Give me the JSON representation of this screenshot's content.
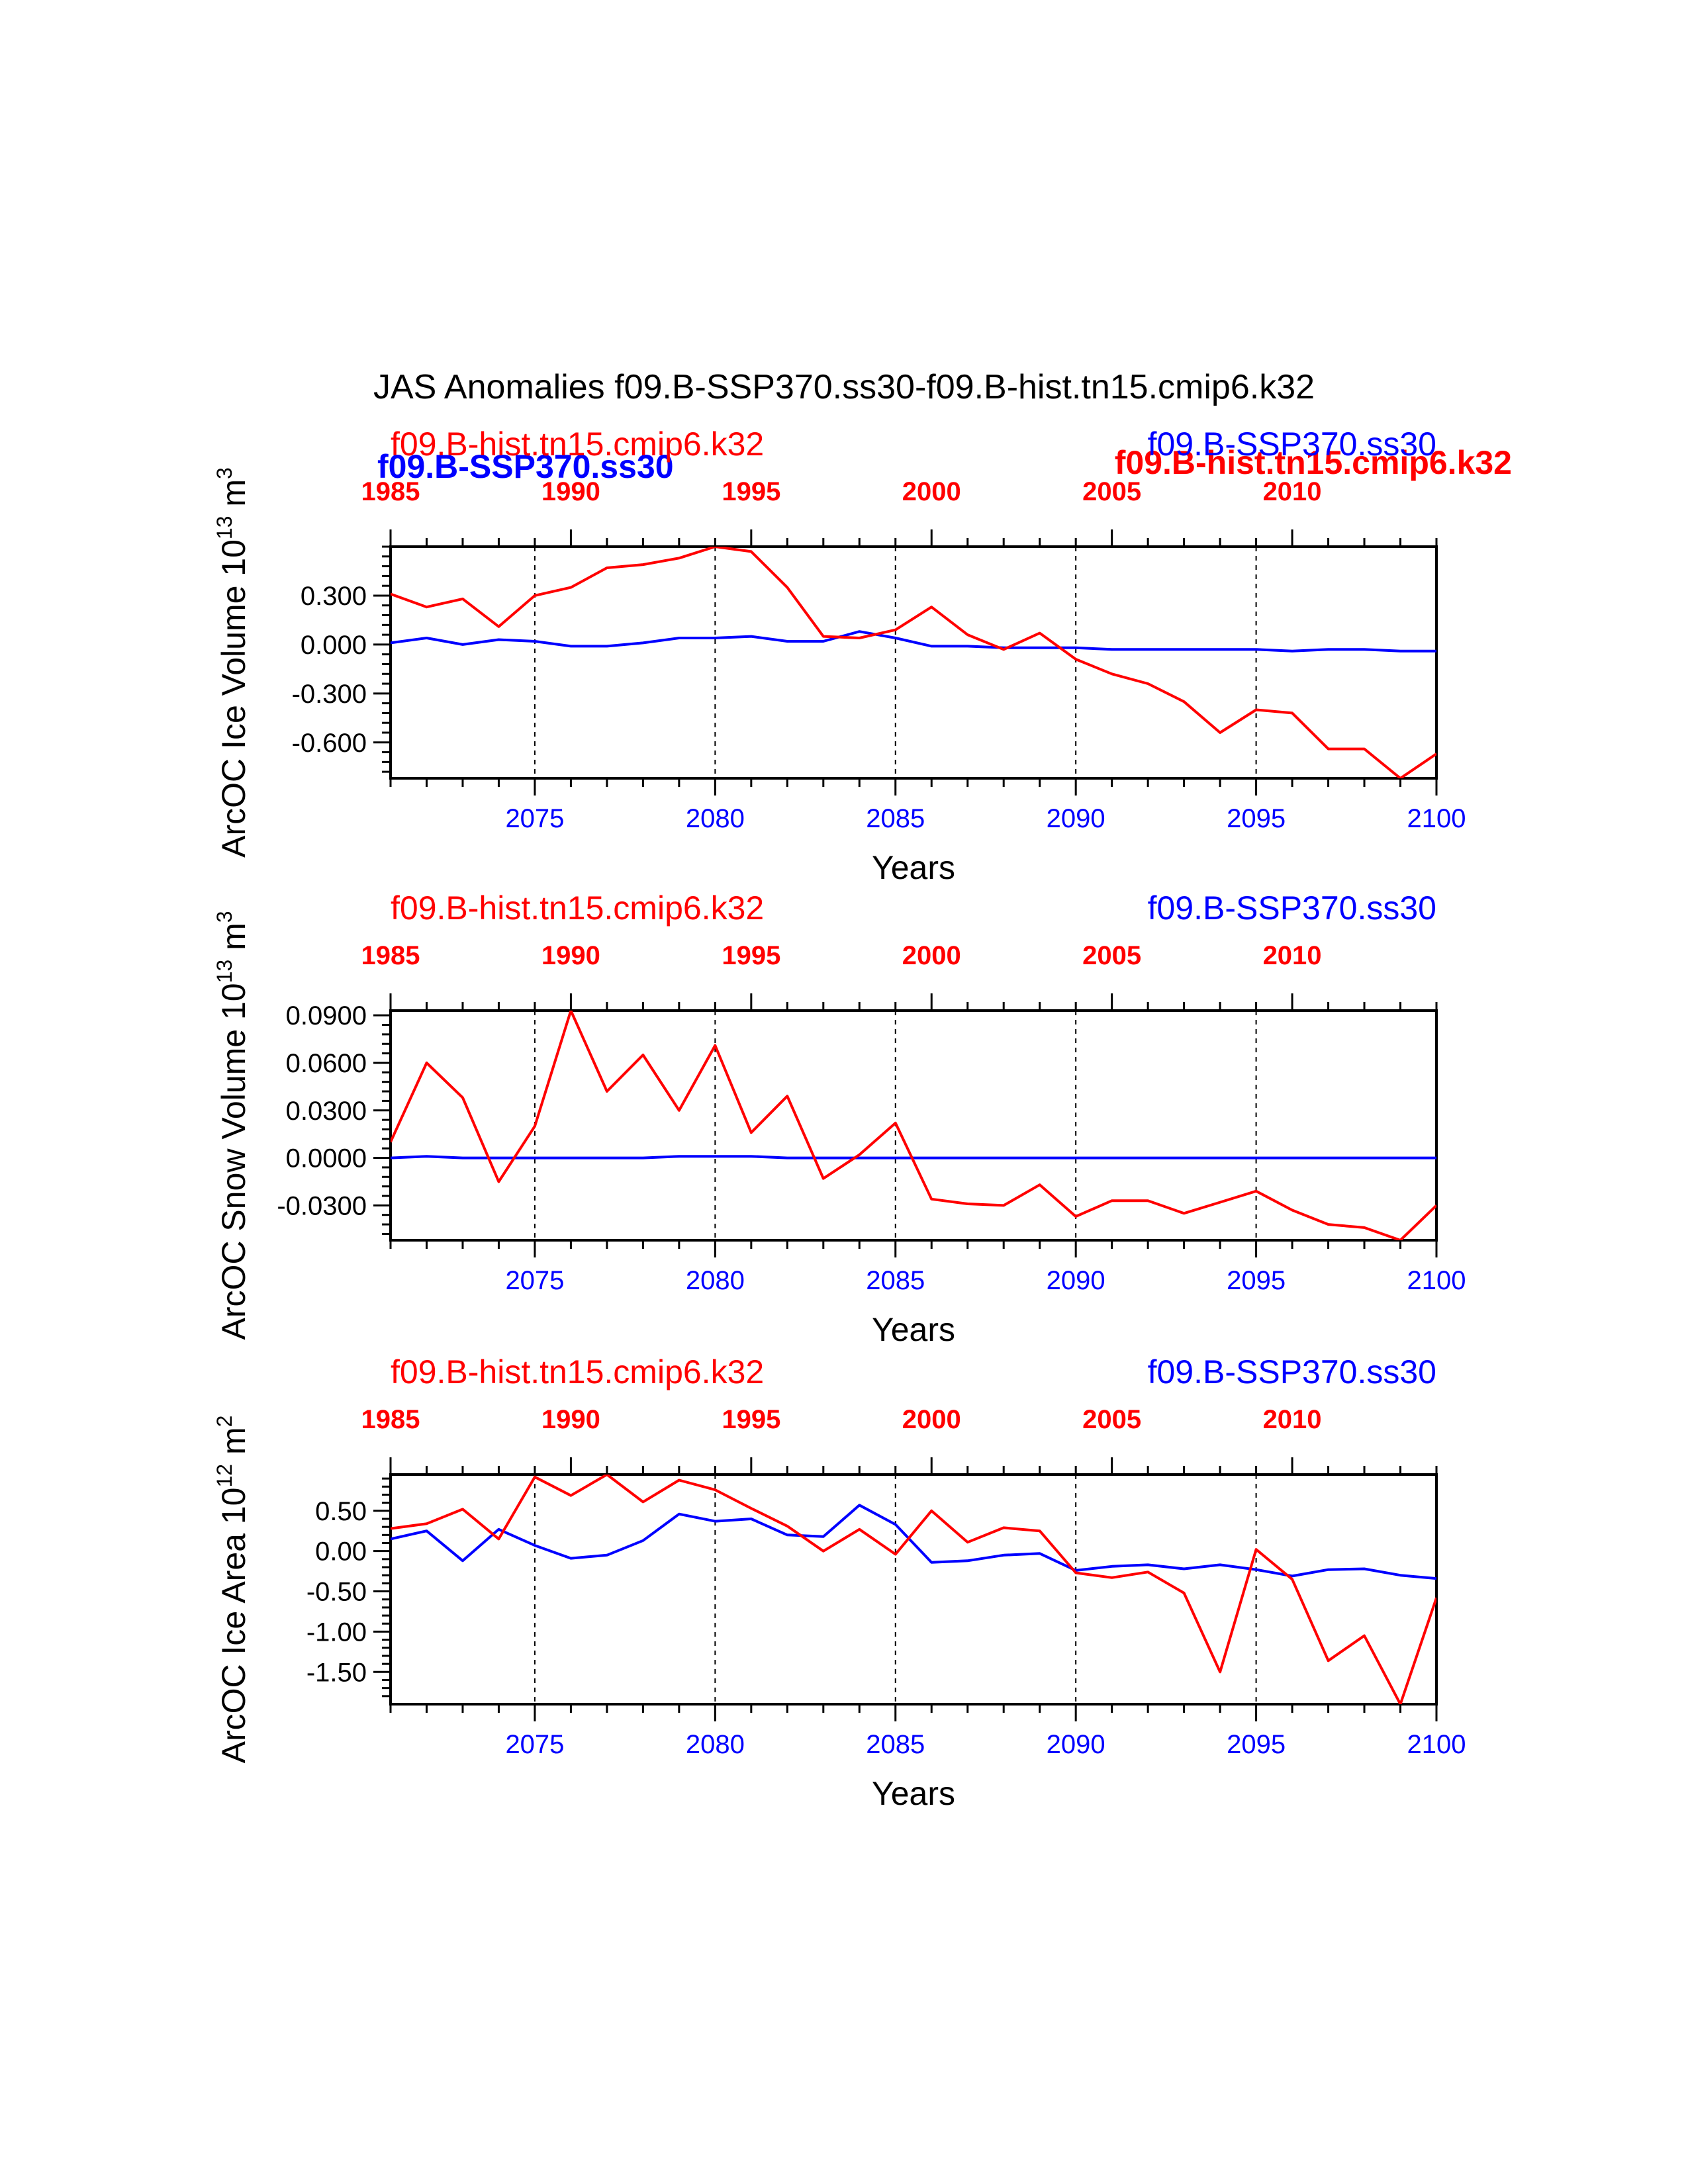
{
  "title": "JAS Anomalies f09.B-SSP370.ss30-f09.B-hist.tn15.cmip6.k32",
  "colors": {
    "hist": "#ff0000",
    "ssp": "#0000ff",
    "axis": "#000000",
    "grid": "#000000"
  },
  "overlay_labels": {
    "ssp_bold": "f09.B-SSP370.ss30",
    "hist_bold": "f09.B-hist.tn15.cmip6.k32"
  },
  "chart_data": [
    {
      "type": "line",
      "ylabel_main": "ArcOC Ice Volume 10",
      "ylabel_exp": "13",
      "ylabel_unit": " m",
      "ylabel_unit_exp": "3",
      "xlabel": "Years",
      "left_label": "f09.B-hist.tn15.cmip6.k32",
      "right_label": "f09.B-SSP370.ss30",
      "x_bottom": [
        2071,
        2072,
        2073,
        2074,
        2075,
        2076,
        2077,
        2078,
        2079,
        2080,
        2081,
        2082,
        2083,
        2084,
        2085,
        2086,
        2087,
        2088,
        2089,
        2090,
        2091,
        2092,
        2093,
        2094,
        2095,
        2096,
        2097,
        2098,
        2099,
        2100
      ],
      "xlim": [
        2071,
        2100
      ],
      "xticks_bottom": [
        2075,
        2080,
        2085,
        2090,
        2095,
        2100
      ],
      "xticks_top": [
        1985,
        1990,
        1995,
        2000,
        2005,
        2010
      ],
      "xlim_top": [
        1985,
        2014
      ],
      "grid_x": [
        2075,
        2080,
        2085,
        2090,
        2095
      ],
      "ylim": [
        -0.82,
        0.6
      ],
      "yticks": [
        0.3,
        0.0,
        -0.3,
        -0.6
      ],
      "ytick_labels": [
        "0.300",
        "0.000",
        "-0.300",
        "-0.600"
      ],
      "series": [
        {
          "name": "f09.B-hist.tn15.cmip6.k32",
          "color": "#ff0000",
          "values": [
            0.31,
            0.23,
            0.28,
            0.11,
            0.3,
            0.35,
            0.47,
            0.49,
            0.53,
            0.6,
            0.57,
            0.35,
            0.05,
            0.04,
            0.09,
            0.23,
            0.06,
            -0.03,
            0.07,
            -0.09,
            -0.18,
            -0.24,
            -0.35,
            -0.54,
            -0.4,
            -0.42,
            -0.64,
            -0.64,
            -0.82,
            -0.67
          ]
        },
        {
          "name": "f09.B-SSP370.ss30",
          "color": "#0000ff",
          "values": [
            0.01,
            0.04,
            0.0,
            0.03,
            0.02,
            -0.01,
            -0.01,
            0.01,
            0.04,
            0.04,
            0.05,
            0.02,
            0.02,
            0.08,
            0.04,
            -0.01,
            -0.01,
            -0.02,
            -0.02,
            -0.02,
            -0.03,
            -0.03,
            -0.03,
            -0.03,
            -0.03,
            -0.04,
            -0.03,
            -0.03,
            -0.04,
            -0.04
          ]
        }
      ]
    },
    {
      "type": "line",
      "ylabel_main": "ArcOC Snow Volume 10",
      "ylabel_exp": "13",
      "ylabel_unit": " m",
      "ylabel_unit_exp": "3",
      "xlabel": "Years",
      "left_label": "f09.B-hist.tn15.cmip6.k32",
      "right_label": "f09.B-SSP370.ss30",
      "x_bottom": [
        2071,
        2072,
        2073,
        2074,
        2075,
        2076,
        2077,
        2078,
        2079,
        2080,
        2081,
        2082,
        2083,
        2084,
        2085,
        2086,
        2087,
        2088,
        2089,
        2090,
        2091,
        2092,
        2093,
        2094,
        2095,
        2096,
        2097,
        2098,
        2099,
        2100
      ],
      "xlim": [
        2071,
        2100
      ],
      "xticks_bottom": [
        2075,
        2080,
        2085,
        2090,
        2095,
        2100
      ],
      "xticks_top": [
        1985,
        1990,
        1995,
        2000,
        2005,
        2010
      ],
      "xlim_top": [
        1985,
        2014
      ],
      "grid_x": [
        2075,
        2080,
        2085,
        2090,
        2095
      ],
      "ylim": [
        -0.052,
        0.093
      ],
      "yticks": [
        0.09,
        0.06,
        0.03,
        0.0,
        -0.03
      ],
      "ytick_labels": [
        "0.0900",
        "0.0600",
        "0.0300",
        "0.0000",
        "-0.0300"
      ],
      "series": [
        {
          "name": "f09.B-hist.tn15.cmip6.k32",
          "color": "#ff0000",
          "values": [
            0.01,
            0.06,
            0.038,
            -0.015,
            0.02,
            0.093,
            0.042,
            0.065,
            0.03,
            0.071,
            0.016,
            0.039,
            -0.013,
            0.002,
            0.022,
            -0.026,
            -0.029,
            -0.03,
            -0.017,
            -0.037,
            -0.027,
            -0.027,
            -0.035,
            -0.028,
            -0.021,
            -0.033,
            -0.042,
            -0.044,
            -0.052,
            -0.03
          ]
        },
        {
          "name": "f09.B-SSP370.ss30",
          "color": "#0000ff",
          "values": [
            0.0,
            0.001,
            0.0,
            0.0,
            0.0,
            0.0,
            0.0,
            0.0,
            0.001,
            0.001,
            0.001,
            0.0,
            0.0,
            0.0,
            0.0,
            0.0,
            0.0,
            0.0,
            0.0,
            0.0,
            0.0,
            0.0,
            0.0,
            0.0,
            0.0,
            0.0,
            0.0,
            0.0,
            0.0,
            0.0
          ]
        }
      ]
    },
    {
      "type": "line",
      "ylabel_main": "ArcOC Ice Area 10",
      "ylabel_exp": "12",
      "ylabel_unit": " m",
      "ylabel_unit_exp": "2",
      "xlabel": "Years",
      "left_label": "f09.B-hist.tn15.cmip6.k32",
      "right_label": "f09.B-SSP370.ss30",
      "x_bottom": [
        2071,
        2072,
        2073,
        2074,
        2075,
        2076,
        2077,
        2078,
        2079,
        2080,
        2081,
        2082,
        2083,
        2084,
        2085,
        2086,
        2087,
        2088,
        2089,
        2090,
        2091,
        2092,
        2093,
        2094,
        2095,
        2096,
        2097,
        2098,
        2099,
        2100
      ],
      "xlim": [
        2071,
        2100
      ],
      "xticks_bottom": [
        2075,
        2080,
        2085,
        2090,
        2095,
        2100
      ],
      "xticks_top": [
        1985,
        1990,
        1995,
        2000,
        2005,
        2010
      ],
      "xlim_top": [
        1985,
        2014
      ],
      "grid_x": [
        2075,
        2080,
        2085,
        2090,
        2095
      ],
      "ylim": [
        -1.9,
        0.95
      ],
      "yticks": [
        0.5,
        0.0,
        -0.5,
        -1.0,
        -1.5
      ],
      "ytick_labels": [
        "0.50",
        "0.00",
        "-0.50",
        "-1.00",
        "-1.50"
      ],
      "series": [
        {
          "name": "f09.B-hist.tn15.cmip6.k32",
          "color": "#ff0000",
          "values": [
            0.28,
            0.34,
            0.52,
            0.15,
            0.92,
            0.69,
            0.95,
            0.61,
            0.88,
            0.76,
            0.53,
            0.31,
            0.0,
            0.27,
            -0.04,
            0.5,
            0.11,
            0.29,
            0.25,
            -0.27,
            -0.33,
            -0.26,
            -0.52,
            -1.5,
            0.02,
            -0.35,
            -1.36,
            -1.05,
            -1.9,
            -0.58
          ]
        },
        {
          "name": "f09.B-SSP370.ss30",
          "color": "#0000ff",
          "values": [
            0.15,
            0.25,
            -0.12,
            0.27,
            0.07,
            -0.09,
            -0.05,
            0.13,
            0.46,
            0.37,
            0.4,
            0.2,
            0.18,
            0.57,
            0.33,
            -0.14,
            -0.12,
            -0.05,
            -0.03,
            -0.24,
            -0.19,
            -0.17,
            -0.22,
            -0.17,
            -0.23,
            -0.31,
            -0.23,
            -0.22,
            -0.3,
            -0.34
          ]
        }
      ]
    }
  ]
}
